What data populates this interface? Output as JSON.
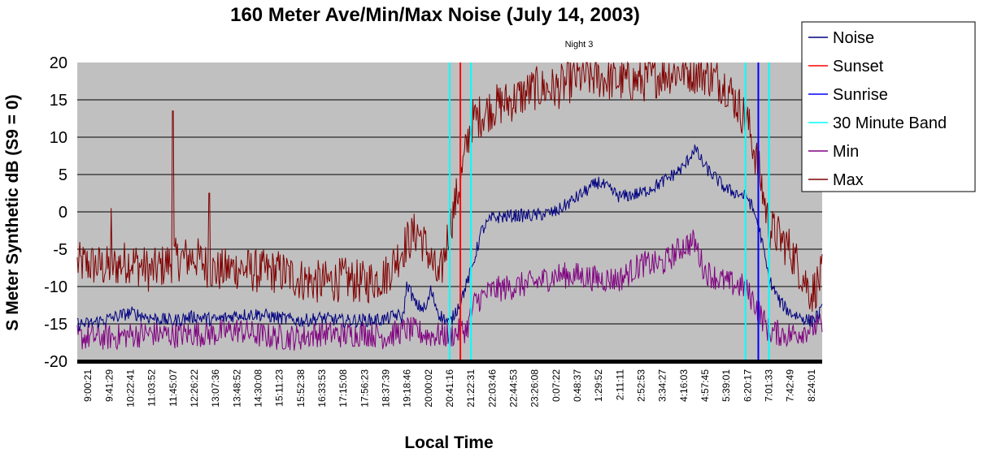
{
  "chart_data": {
    "type": "line",
    "title": "160 Meter Ave/Min/Max Noise (July 14, 2003)",
    "subtitle": "Night 3",
    "xlabel": "Local Time",
    "ylabel": "S Meter Synthetic dB (S9 = 0)",
    "ylim": [
      -20,
      20
    ],
    "yticks": [
      20,
      15,
      10,
      5,
      0,
      -5,
      -10,
      -15,
      -20
    ],
    "grid": true,
    "legend_position": "top-right",
    "background_color": "#C0C0C0",
    "x_tick_labels": [
      "9:00:21",
      "9:41:29",
      "10:22:41",
      "11:03:52",
      "11:45:07",
      "12:26:22",
      "13:07:36",
      "13:48:52",
      "14:30:08",
      "15:11:23",
      "15:52:38",
      "16:33:53",
      "17:15:08",
      "17:56:23",
      "18:37:39",
      "19:18:46",
      "20:00:02",
      "20:41:16",
      "21:22:31",
      "22:03:46",
      "22:44:53",
      "23:26:08",
      "0:07:22",
      "0:48:37",
      "1:29:52",
      "2:11:11",
      "2:52:53",
      "3:34:27",
      "4:16:03",
      "4:57:45",
      "5:39:01",
      "6:20:17",
      "7:01:33",
      "7:42:49",
      "8:24:01"
    ],
    "series": [
      {
        "name": "Noise",
        "color": "#000080",
        "noise_amplitude": 0.9,
        "points": [
          [
            0,
            -15
          ],
          [
            1,
            -14.3
          ],
          [
            2,
            -13.5
          ],
          [
            3,
            -14.2
          ],
          [
            4,
            -14.6
          ],
          [
            5,
            -14
          ],
          [
            6,
            -14.5
          ],
          [
            7,
            -13.8
          ],
          [
            8,
            -13.7
          ],
          [
            9,
            -14.2
          ],
          [
            10,
            -14.6
          ],
          [
            11,
            -14.2
          ],
          [
            12,
            -14.6
          ],
          [
            13,
            -14.5
          ],
          [
            14,
            -14.4
          ],
          [
            14.5,
            -13.8
          ],
          [
            14.8,
            -14.2
          ],
          [
            15,
            -9.5
          ],
          [
            15.4,
            -12.5
          ],
          [
            15.9,
            -13
          ],
          [
            16.1,
            -10.5
          ],
          [
            16.5,
            -13.7
          ],
          [
            17,
            -15
          ],
          [
            17.5,
            -12
          ],
          [
            18,
            -8
          ],
          [
            18.5,
            -2.5
          ],
          [
            19,
            -0.8
          ],
          [
            20,
            -0.5
          ],
          [
            21,
            -0.5
          ],
          [
            22,
            0
          ],
          [
            23,
            2
          ],
          [
            24,
            4
          ],
          [
            25,
            2
          ],
          [
            26,
            2.5
          ],
          [
            27,
            4
          ],
          [
            28,
            6
          ],
          [
            28.5,
            8.5
          ],
          [
            29,
            6
          ],
          [
            30,
            3
          ],
          [
            31,
            2
          ],
          [
            31.5,
            -1.5
          ],
          [
            32,
            -9
          ],
          [
            32.5,
            -12
          ],
          [
            33,
            -13.5
          ],
          [
            34,
            -14.7
          ],
          [
            34.5,
            -13.2
          ],
          [
            35,
            -13.5
          ]
        ]
      },
      {
        "name": "Sunset",
        "color": "#FF0000",
        "type": "vertical_line",
        "x": 17.5
      },
      {
        "name": "Sunrise",
        "color": "#0000FF",
        "type": "vertical_line",
        "x": 31.5
      },
      {
        "name": "30 Minute Band",
        "color": "#00FFFF",
        "type": "vertical_lines",
        "x": [
          17.0,
          18.0,
          30.9,
          32.0
        ]
      },
      {
        "name": "Min",
        "color": "#800080",
        "noise_amplitude": 1.8,
        "points": [
          [
            0,
            -16.8
          ],
          [
            1,
            -16.8
          ],
          [
            2,
            -16.5
          ],
          [
            3,
            -16.3
          ],
          [
            4,
            -16.5
          ],
          [
            5,
            -16.3
          ],
          [
            6,
            -16.3
          ],
          [
            7,
            -15.8
          ],
          [
            8,
            -16.5
          ],
          [
            9,
            -16.8
          ],
          [
            10,
            -16.8
          ],
          [
            11,
            -16.2
          ],
          [
            12,
            -16.5
          ],
          [
            13,
            -16.2
          ],
          [
            14,
            -16.7
          ],
          [
            15,
            -15.7
          ],
          [
            16,
            -16.5
          ],
          [
            17,
            -16.5
          ],
          [
            17.8,
            -15.7
          ],
          [
            18.2,
            -12
          ],
          [
            19,
            -10.5
          ],
          [
            20,
            -10
          ],
          [
            21,
            -9.5
          ],
          [
            22,
            -8.5
          ],
          [
            23,
            -8.5
          ],
          [
            24,
            -9
          ],
          [
            25,
            -9
          ],
          [
            26,
            -7
          ],
          [
            27,
            -7
          ],
          [
            28,
            -4.5
          ],
          [
            28.5,
            -4
          ],
          [
            29,
            -8
          ],
          [
            30,
            -9.5
          ],
          [
            30.8,
            -10
          ],
          [
            31.3,
            -12
          ],
          [
            32,
            -16
          ],
          [
            33,
            -16.5
          ],
          [
            34,
            -15.5
          ],
          [
            35,
            -15
          ]
        ]
      },
      {
        "name": "Max",
        "color": "#800000",
        "noise_amplitude": 3.0,
        "points": [
          [
            0,
            -7
          ],
          [
            1,
            -7.5
          ],
          [
            2,
            -6.5
          ],
          [
            3,
            -8
          ],
          [
            4,
            -6.5
          ],
          [
            5,
            -6
          ],
          [
            6,
            -8
          ],
          [
            7,
            -7.5
          ],
          [
            8,
            -8
          ],
          [
            9,
            -8
          ],
          [
            10,
            -9
          ],
          [
            11,
            -9.5
          ],
          [
            12,
            -9
          ],
          [
            13,
            -9.5
          ],
          [
            14,
            -8.5
          ],
          [
            15,
            -4
          ],
          [
            15.5,
            -2.5
          ],
          [
            16,
            -5.5
          ],
          [
            16.5,
            -9.5
          ],
          [
            17,
            -2
          ],
          [
            17.5,
            4
          ],
          [
            18,
            12
          ],
          [
            19,
            14
          ],
          [
            20,
            15
          ],
          [
            21,
            16.5
          ],
          [
            22,
            16.5
          ],
          [
            23,
            18
          ],
          [
            24,
            18
          ],
          [
            25,
            17.5
          ],
          [
            26,
            17.5
          ],
          [
            27,
            18.5
          ],
          [
            28,
            19
          ],
          [
            29,
            18.5
          ],
          [
            30,
            17
          ],
          [
            31,
            12
          ],
          [
            31.5,
            6
          ],
          [
            32,
            -2
          ],
          [
            33,
            -5
          ],
          [
            34,
            -11
          ],
          [
            34.5,
            -8.5
          ],
          [
            35,
            -10.5
          ]
        ],
        "spikes": [
          [
            4,
            13.5
          ],
          [
            5.7,
            2.5
          ],
          [
            1.1,
            0.5
          ]
        ]
      }
    ]
  }
}
